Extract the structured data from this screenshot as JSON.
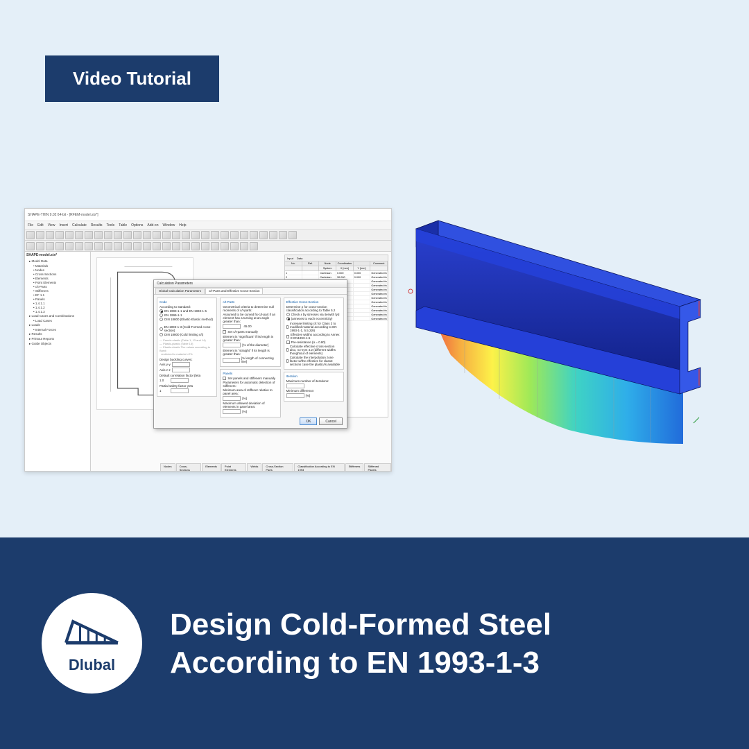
{
  "badge": "Video Tutorial",
  "brand": "Dlubal",
  "brand_color": "#1c3c6c",
  "top_bg": "#e4eff8",
  "banner_title_line1": "Design Cold-Formed Steel",
  "banner_title_line2": "According to EN 1993-1-3",
  "app": {
    "title": "SHAPE-THIN 9.02 64-bit - [RFEM-model.stx*]",
    "menus": [
      "File",
      "Edit",
      "View",
      "Insert",
      "Calculate",
      "Results",
      "Tools",
      "Table",
      "Options",
      "Add-on",
      "Window",
      "Help"
    ]
  },
  "tree": {
    "title": "SHAPE-model.stx*",
    "items": [
      {
        "label": "Model Data",
        "lvl": 1
      },
      {
        "label": "Materials",
        "lvl": 2
      },
      {
        "label": "Nodes",
        "lvl": 2
      },
      {
        "label": "Cross-Sections",
        "lvl": 2
      },
      {
        "label": "Elements",
        "lvl": 2
      },
      {
        "label": "Point Elements",
        "lvl": 2
      },
      {
        "label": "c/t-Parts",
        "lvl": 2
      },
      {
        "label": "Stiffeners",
        "lvl": 2
      },
      {
        "label": "EF 1.1",
        "lvl": 2
      },
      {
        "label": "Panels",
        "lvl": 2
      },
      {
        "label": "1.4.1.1",
        "lvl": 2
      },
      {
        "label": "1.4.1.2",
        "lvl": 2
      },
      {
        "label": "1.4.1.3",
        "lvl": 2
      },
      {
        "label": "Load Cases and Combinations",
        "lvl": 1
      },
      {
        "label": "Load Cases",
        "lvl": 2
      },
      {
        "label": "Loads",
        "lvl": 1
      },
      {
        "label": "Internal Forces",
        "lvl": 2
      },
      {
        "label": "Results",
        "lvl": 1
      },
      {
        "label": "Printout Reports",
        "lvl": 1
      },
      {
        "label": "Guide Objects",
        "lvl": 1
      }
    ]
  },
  "dialog": {
    "title": "Calculation Parameters",
    "tabs": [
      "Global Calculation Parameters",
      "c/t-Parts and Effective Cross-Section"
    ],
    "active_tab": 1,
    "code_group": "Code",
    "code_sub": "According to standard:",
    "codes": [
      {
        "label": "EN 1993-1-1 and EN 1993-1-5",
        "checked": true
      },
      {
        "label": "EN 1999-1-1",
        "checked": false
      },
      {
        "label": "DIN 18800 (Elastic-Elastic method)",
        "checked": false
      }
    ],
    "codes2": [
      {
        "label": "EN 1993-1-3 (Cold-Formed cross-section)",
        "checked": false
      },
      {
        "label": "DIN 18800 (Cold limiting c/t)",
        "checked": false
      }
    ],
    "buckling_title": "Design buckling curves:",
    "axis_y": "Axis y-y",
    "axis_z": "Axis z-z",
    "default_corr": "Default correlation factor βeta",
    "partial_safety": "Partial safety factor γM1",
    "cparts_group": "c/t-Parts",
    "cparts_text": "Geometrical criteria to determine null moments of c/t-parts:",
    "cparts_desc": "Assumed to be curved fix-c/t-part if an element has a turning at an angle greater than:",
    "set_manually": "Set c/t-parts manually",
    "signif": "Element is \"significant\" if its length is greater than:",
    "diameter_pct": "[% of the diameter]",
    "straight": "Element is \"straight\" if its length is greater than:",
    "conn_pct": "[% length of connecting line]",
    "panels_group": "Panels",
    "panels_cb": "Set panels and stiffeners manually",
    "panels_param": "Parameters for automatic detection of stiffeners:",
    "panels_min": "Minimum area of stiffener relative to panel area:",
    "panels_max": "Maximum allowed deviation of elements in panel area:",
    "eff_group": "Effective Cross-Section",
    "eff_text": "Determine ρ for cross-section classification according to Table 5.2",
    "eff_r1": "Check ε by stresses via iterwith fyd",
    "eff_r2": "(annexes to each eccentricity)",
    "eff_cb1": "Increase limiting c/t for Class 3 to modified material according to EN 1993-1-1, 5.5.2(9)",
    "eff_cb2": "Effective widths according to Annex E EN1993-1-5",
    "eff_cb3": "Pre-resistance (α = 0.80)",
    "eff_cb4": "Calculate effective cross-section also, no-sym 4.2 (different widths thoughtout of elements)",
    "eff_cb5": "Calculate the interpolation zone factor w/the effective for class3 sections case the plastic/is available",
    "iter_group": "Iteration",
    "iter_max": "Maximum number of iterations:",
    "iter_min": "Minimum difference:",
    "ok": "OK",
    "cancel": "Cancel"
  },
  "table": {
    "toolbar_items": [
      "Input",
      "Data",
      "…"
    ],
    "cols": [
      "No.",
      "Ref.",
      "Node",
      "Coordinates",
      "",
      "Comment"
    ],
    "subcols": [
      "",
      "",
      "System",
      "X [mm]",
      "Y [mm]",
      ""
    ],
    "rows": [
      [
        "1",
        "",
        "Cartesian",
        "0.000",
        "0.000",
        "Generated from Line No. 1"
      ],
      [
        "2",
        "",
        "Cartesian",
        "30.000",
        "0.000",
        "Generated from Line No. 2"
      ],
      [
        "3",
        "",
        "Cartesian",
        "",
        "",
        "Generated from Line No. 3"
      ],
      [
        "4",
        "",
        "Cartesian",
        "",
        "",
        "Generated from Line No. 4"
      ],
      [
        "5",
        "",
        "Cartesian",
        "",
        "",
        "Generated from Line No. 5"
      ],
      [
        "6",
        "",
        "Cartesian",
        "",
        "",
        "Generated from Line No. 6"
      ],
      [
        "7",
        "",
        "Cartesian",
        "",
        "",
        "Generated from Line No. 7"
      ],
      [
        "8",
        "",
        "Cartesian",
        "",
        "",
        "Generated from Line No. 8"
      ],
      [
        "9",
        "",
        "Cartesian",
        "",
        "",
        "Generated from Line No. 9"
      ],
      [
        "10",
        "",
        "Cartesian",
        "",
        "",
        "Generated from Line No. 10"
      ],
      [
        "11",
        "",
        "Cartesian",
        "",
        "",
        "Generated from Line No. 11"
      ],
      [
        "12",
        "",
        "Cartesian",
        "",
        "",
        "Generated from Line No. 12"
      ]
    ]
  },
  "bottom_tabs": [
    "Nodes",
    "Cross-Sections",
    "Elements",
    "Point Elements",
    "Welds",
    "Cross-Section Parts",
    "Classification According to EN 1993",
    "Stiffeners",
    "Stiffened Panels"
  ],
  "beam_palette": {
    "body": "#1a2fa8",
    "top": "#2540d8",
    "flange": "#3050e0",
    "grad_stops": [
      "#ef3e2e",
      "#f7a531",
      "#fff23a",
      "#98e84a",
      "#30d0c0",
      "#1fa8e8",
      "#1060d8"
    ]
  }
}
